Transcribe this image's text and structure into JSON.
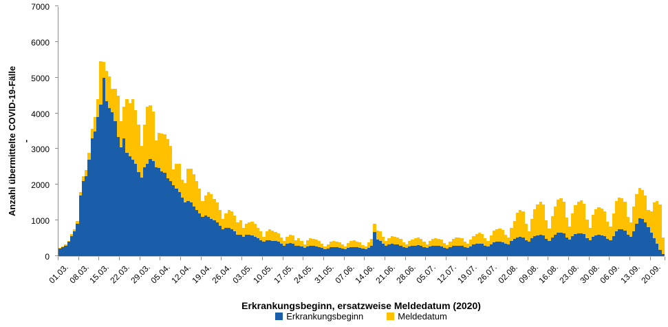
{
  "colors": {
    "blue": "#1A5DA8",
    "yellow": "#FFC000",
    "axis": "#8c8c8c"
  },
  "y_axis": {
    "title": "Anzahl übermittelte COVID-19-Fälle\n-",
    "ticks": [
      "0",
      "1000",
      "2000",
      "3000",
      "4000",
      "5000",
      "6000",
      "7000"
    ],
    "max": 7000
  },
  "x_axis": {
    "title": "Erkrankungsbeginn, ersatzweise Meldedatum (2020)",
    "tick_labels": [
      "01.03.",
      "08.03.",
      "15.03.",
      "22.03.",
      "29.03.",
      "05.04.",
      "12.04.",
      "19.04.",
      "26.04.",
      "03.05.",
      "10.05.",
      "17.05.",
      "24.05.",
      "31.05.",
      "07.06.",
      "14.06.",
      "21.06.",
      "28.06.",
      "05.07.",
      "12.07.",
      "19.07.",
      "26.07.",
      "02.08.",
      "09.08.",
      "16.08.",
      "23.08.",
      "30.08.",
      "06.09.",
      "13.09.",
      "20.09."
    ],
    "tick_interval_days": 7
  },
  "legend": [
    {
      "label": "Erkrankungsbeginn",
      "color": "#1A5DA8"
    },
    {
      "label": "Meldedatum",
      "color": "#FFC000"
    }
  ],
  "chart_data": {
    "type": "bar",
    "stacked": true,
    "title": "",
    "xlabel": "Erkrankungsbeginn, ersatzweise Meldedatum (2020)",
    "ylabel": "Anzahl übermittelte COVID-19-Fälle",
    "ylim": [
      0,
      7000
    ],
    "grid": false,
    "legend_position": "bottom",
    "x_start": "01.03.2020",
    "x_end": "24.09.2020",
    "days": 208,
    "series": [
      {
        "name": "Erkrankungsbeginn",
        "color": "#1A5DA8",
        "values": [
          210,
          250,
          300,
          400,
          560,
          700,
          900,
          1700,
          2100,
          2250,
          2700,
          3300,
          3500,
          3900,
          4250,
          5000,
          4350,
          4150,
          4050,
          3800,
          3350,
          3050,
          3300,
          2900,
          2800,
          2700,
          2600,
          2350,
          2200,
          2500,
          2600,
          2720,
          2660,
          2500,
          2470,
          2380,
          2340,
          2190,
          2110,
          1990,
          1900,
          1800,
          1650,
          1500,
          1550,
          1500,
          1400,
          1300,
          1200,
          1100,
          1150,
          1100,
          1050,
          1000,
          950,
          850,
          750,
          800,
          800,
          750,
          700,
          600,
          600,
          550,
          600,
          600,
          580,
          550,
          500,
          450,
          400,
          450,
          450,
          430,
          420,
          400,
          350,
          300,
          350,
          360,
          350,
          300,
          300,
          270,
          230,
          280,
          300,
          290,
          280,
          260,
          230,
          200,
          220,
          250,
          260,
          250,
          240,
          210,
          190,
          230,
          250,
          260,
          250,
          240,
          210,
          200,
          240,
          300,
          670,
          460,
          420,
          350,
          300,
          320,
          340,
          330,
          320,
          300,
          260,
          230,
          270,
          290,
          300,
          310,
          300,
          260,
          230,
          270,
          290,
          300,
          290,
          280,
          240,
          220,
          260,
          290,
          300,
          300,
          290,
          250,
          230,
          280,
          320,
          340,
          350,
          340,
          300,
          270,
          330,
          380,
          400,
          400,
          390,
          350,
          320,
          420,
          480,
          520,
          540,
          530,
          450,
          400,
          500,
          560,
          590,
          600,
          580,
          480,
          430,
          530,
          600,
          650,
          660,
          630,
          520,
          460,
          560,
          610,
          630,
          640,
          610,
          500,
          440,
          550,
          580,
          600,
          590,
          570,
          490,
          450,
          560,
          700,
          760,
          750,
          720,
          600,
          550,
          700,
          900,
          1070,
          1050,
          950,
          820,
          650,
          500,
          350,
          180,
          60
        ]
      },
      {
        "name": "Meldedatum",
        "color": "#FFC000",
        "values": [
          20,
          25,
          25,
          30,
          50,
          60,
          80,
          100,
          150,
          160,
          200,
          280,
          400,
          500,
          1230,
          450,
          850,
          900,
          650,
          900,
          1150,
          750,
          900,
          1500,
          1500,
          1700,
          1500,
          1350,
          900,
          1200,
          1600,
          1520,
          1410,
          750,
          1000,
          1070,
          1080,
          1090,
          980,
          450,
          700,
          800,
          500,
          550,
          900,
          950,
          900,
          800,
          700,
          450,
          550,
          700,
          700,
          600,
          550,
          450,
          300,
          400,
          500,
          500,
          450,
          350,
          400,
          250,
          300,
          350,
          380,
          350,
          300,
          250,
          150,
          250,
          300,
          280,
          260,
          240,
          180,
          120,
          200,
          240,
          230,
          150,
          200,
          150,
          100,
          160,
          200,
          190,
          180,
          160,
          120,
          80,
          100,
          150,
          170,
          160,
          140,
          110,
          80,
          130,
          170,
          180,
          160,
          140,
          100,
          80,
          140,
          180,
          230,
          250,
          280,
          200,
          130,
          180,
          220,
          210,
          200,
          180,
          130,
          90,
          150,
          180,
          200,
          210,
          190,
          140,
          100,
          160,
          200,
          210,
          200,
          180,
          130,
          90,
          150,
          200,
          220,
          230,
          210,
          150,
          110,
          190,
          250,
          280,
          300,
          280,
          200,
          150,
          260,
          330,
          360,
          370,
          340,
          250,
          200,
          380,
          500,
          700,
          760,
          720,
          450,
          300,
          550,
          750,
          870,
          920,
          870,
          520,
          350,
          600,
          800,
          930,
          960,
          900,
          560,
          380,
          640,
          820,
          890,
          920,
          860,
          520,
          360,
          620,
          740,
          780,
          750,
          680,
          480,
          380,
          640,
          850,
          890,
          870,
          800,
          500,
          400,
          700,
          850,
          850,
          800,
          750,
          480,
          600,
          1000,
          1200,
          1280,
          460
        ]
      }
    ]
  }
}
